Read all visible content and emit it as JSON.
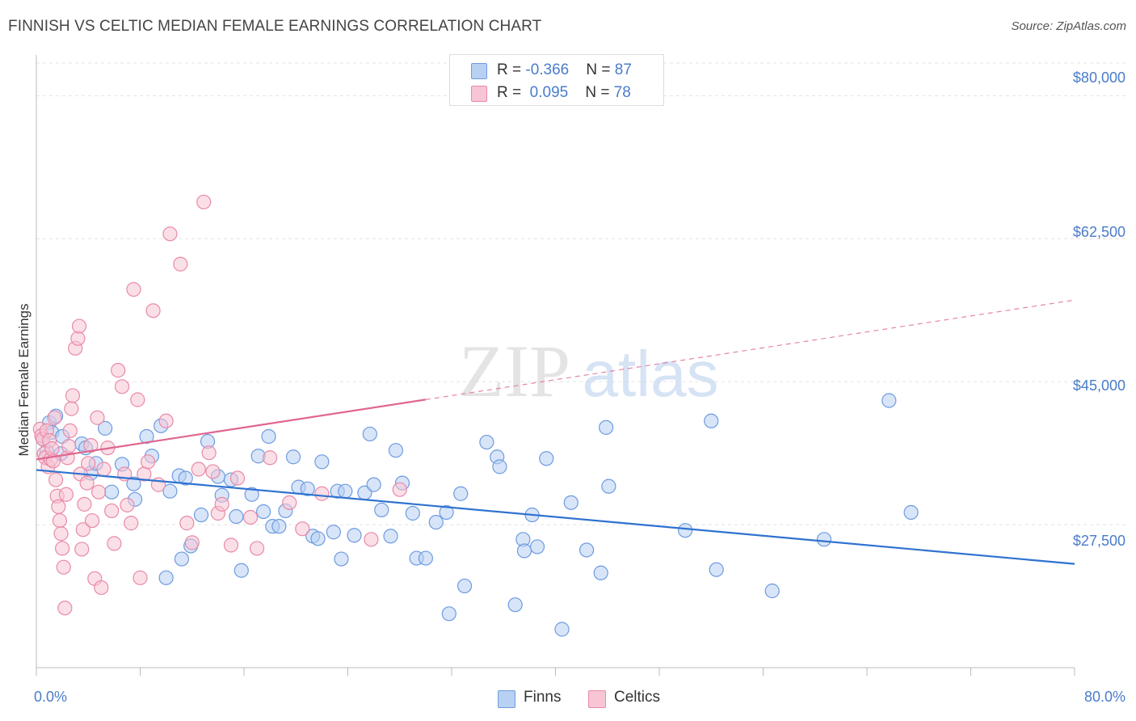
{
  "header": {
    "title": "FINNISH VS CELTIC MEDIAN FEMALE EARNINGS CORRELATION CHART",
    "source": "Source: ZipAtlas.com"
  },
  "legend": {
    "finns": {
      "r_label": "R = ",
      "r_value": "-0.366",
      "n_label": "N = ",
      "n_value": "87"
    },
    "celtics": {
      "r_label": "R = ",
      "r_value": "0.095",
      "n_label": "N = ",
      "n_value": "78"
    }
  },
  "bottom_legend": {
    "finns": "Finns",
    "celtics": "Celtics"
  },
  "colors": {
    "finns_fill": "#b8d0f2",
    "finns_stroke": "#6d9be0",
    "finns_line": "#2f72d0",
    "celtics_fill": "#f8c5d4",
    "celtics_stroke": "#e98aa8",
    "celtics_line": "#e0668f",
    "tick_text": "#4a7cc9",
    "grid": "#e4e4e4"
  },
  "chart_data": {
    "type": "scatter",
    "xlabel": "",
    "ylabel": "Median Female Earnings",
    "xlim": [
      0,
      80
    ],
    "ylim": [
      10000,
      85000
    ],
    "x_tick_labels": [
      "0.0%",
      "80.0%"
    ],
    "y_ticks": [
      27500,
      45000,
      62500,
      80000
    ],
    "y_tick_labels": [
      "$27,500",
      "$45,000",
      "$62,500",
      "$80,000"
    ],
    "watermark": {
      "zip": "ZIP",
      "atlas": "atlas"
    },
    "series": [
      {
        "name": "Finns",
        "r": -0.366,
        "n": 87,
        "trend": {
          "x": [
            0,
            80
          ],
          "y": [
            34200,
            22700
          ],
          "dashed_from": null
        },
        "points": [
          [
            0.5,
            38000
          ],
          [
            0.8,
            36500
          ],
          [
            1.0,
            40000
          ],
          [
            1.2,
            38800
          ],
          [
            1.5,
            40800
          ],
          [
            2.0,
            38300
          ],
          [
            1.9,
            36200
          ],
          [
            3.5,
            37400
          ],
          [
            3.8,
            36900
          ],
          [
            4.2,
            33800
          ],
          [
            4.6,
            35000
          ],
          [
            5.3,
            39300
          ],
          [
            5.8,
            31500
          ],
          [
            6.6,
            34900
          ],
          [
            7.5,
            32500
          ],
          [
            7.6,
            30600
          ],
          [
            8.5,
            38300
          ],
          [
            8.9,
            35900
          ],
          [
            9.6,
            39600
          ],
          [
            10.3,
            31600
          ],
          [
            10.0,
            21000
          ],
          [
            11.0,
            33500
          ],
          [
            11.5,
            33200
          ],
          [
            11.9,
            24900
          ],
          [
            11.2,
            23300
          ],
          [
            12.7,
            28700
          ],
          [
            13.2,
            37700
          ],
          [
            14.0,
            33400
          ],
          [
            14.3,
            31100
          ],
          [
            15.0,
            33000
          ],
          [
            15.4,
            28500
          ],
          [
            15.8,
            21900
          ],
          [
            16.6,
            31200
          ],
          [
            17.1,
            35900
          ],
          [
            17.5,
            29100
          ],
          [
            17.9,
            38300
          ],
          [
            18.2,
            27300
          ],
          [
            18.7,
            27300
          ],
          [
            19.2,
            29200
          ],
          [
            19.8,
            35800
          ],
          [
            20.2,
            32100
          ],
          [
            20.9,
            31900
          ],
          [
            21.3,
            26100
          ],
          [
            21.7,
            25800
          ],
          [
            22.0,
            35200
          ],
          [
            22.9,
            26600
          ],
          [
            23.2,
            31600
          ],
          [
            23.8,
            31600
          ],
          [
            23.5,
            23300
          ],
          [
            24.5,
            26200
          ],
          [
            25.3,
            31400
          ],
          [
            25.7,
            38600
          ],
          [
            26.0,
            32400
          ],
          [
            26.6,
            29300
          ],
          [
            27.3,
            26100
          ],
          [
            27.7,
            36600
          ],
          [
            28.2,
            32600
          ],
          [
            29.0,
            28900
          ],
          [
            29.3,
            23400
          ],
          [
            30.0,
            23400
          ],
          [
            30.8,
            27800
          ],
          [
            31.6,
            29000
          ],
          [
            31.8,
            16600
          ],
          [
            32.7,
            31300
          ],
          [
            33.0,
            20000
          ],
          [
            34.7,
            37600
          ],
          [
            35.5,
            35800
          ],
          [
            35.7,
            34600
          ],
          [
            36.9,
            17700
          ],
          [
            37.5,
            25700
          ],
          [
            37.6,
            24300
          ],
          [
            38.2,
            28700
          ],
          [
            38.6,
            24800
          ],
          [
            39.3,
            35600
          ],
          [
            40.5,
            14700
          ],
          [
            41.2,
            30200
          ],
          [
            42.4,
            24400
          ],
          [
            43.5,
            21600
          ],
          [
            43.9,
            39400
          ],
          [
            44.1,
            32200
          ],
          [
            50.0,
            26800
          ],
          [
            52.0,
            40200
          ],
          [
            52.4,
            22000
          ],
          [
            56.7,
            19400
          ],
          [
            60.7,
            25700
          ],
          [
            65.7,
            42700
          ],
          [
            67.4,
            29000
          ]
        ]
      },
      {
        "name": "Celtics",
        "r": 0.095,
        "n": 78,
        "trend": {
          "x": [
            0,
            80
          ],
          "y": [
            35500,
            55000
          ],
          "dashed_from": 30
        },
        "points": [
          [
            0.3,
            39200
          ],
          [
            0.4,
            38400
          ],
          [
            0.5,
            38000
          ],
          [
            0.6,
            36200
          ],
          [
            0.7,
            35700
          ],
          [
            0.8,
            39000
          ],
          [
            0.9,
            34600
          ],
          [
            1.0,
            37800
          ],
          [
            1.1,
            35500
          ],
          [
            1.2,
            36800
          ],
          [
            1.3,
            35300
          ],
          [
            1.4,
            40600
          ],
          [
            1.5,
            33000
          ],
          [
            1.6,
            31000
          ],
          [
            1.7,
            29700
          ],
          [
            1.8,
            28000
          ],
          [
            1.9,
            26400
          ],
          [
            2.0,
            24600
          ],
          [
            2.1,
            22300
          ],
          [
            2.2,
            17300
          ],
          [
            2.3,
            31200
          ],
          [
            2.4,
            35700
          ],
          [
            2.5,
            37100
          ],
          [
            2.6,
            39000
          ],
          [
            2.7,
            41700
          ],
          [
            2.8,
            43300
          ],
          [
            3.0,
            49100
          ],
          [
            3.2,
            50300
          ],
          [
            3.3,
            51800
          ],
          [
            3.4,
            33700
          ],
          [
            3.5,
            24500
          ],
          [
            3.6,
            26900
          ],
          [
            3.7,
            30000
          ],
          [
            3.9,
            32600
          ],
          [
            4.0,
            35000
          ],
          [
            4.2,
            37200
          ],
          [
            4.3,
            28000
          ],
          [
            4.5,
            20900
          ],
          [
            4.7,
            40600
          ],
          [
            4.8,
            31500
          ],
          [
            5.0,
            19800
          ],
          [
            5.2,
            34300
          ],
          [
            5.5,
            36900
          ],
          [
            5.8,
            29200
          ],
          [
            6.0,
            25200
          ],
          [
            6.3,
            46400
          ],
          [
            6.6,
            44400
          ],
          [
            6.8,
            33700
          ],
          [
            7.0,
            29900
          ],
          [
            7.3,
            27700
          ],
          [
            7.5,
            56300
          ],
          [
            7.8,
            42800
          ],
          [
            8.0,
            21000
          ],
          [
            8.3,
            33700
          ],
          [
            8.6,
            35200
          ],
          [
            9.0,
            53700
          ],
          [
            9.4,
            32400
          ],
          [
            10.0,
            40200
          ],
          [
            10.3,
            63100
          ],
          [
            11.1,
            59400
          ],
          [
            11.6,
            27700
          ],
          [
            12.0,
            25300
          ],
          [
            12.5,
            34300
          ],
          [
            12.9,
            67000
          ],
          [
            13.3,
            36300
          ],
          [
            13.6,
            34000
          ],
          [
            14.0,
            28900
          ],
          [
            14.3,
            30000
          ],
          [
            15.0,
            25000
          ],
          [
            15.5,
            33200
          ],
          [
            16.5,
            28400
          ],
          [
            17.0,
            24600
          ],
          [
            18.0,
            35700
          ],
          [
            19.5,
            30200
          ],
          [
            20.5,
            27000
          ],
          [
            22.0,
            31300
          ],
          [
            25.8,
            25700
          ],
          [
            28.0,
            31800
          ]
        ]
      }
    ]
  }
}
